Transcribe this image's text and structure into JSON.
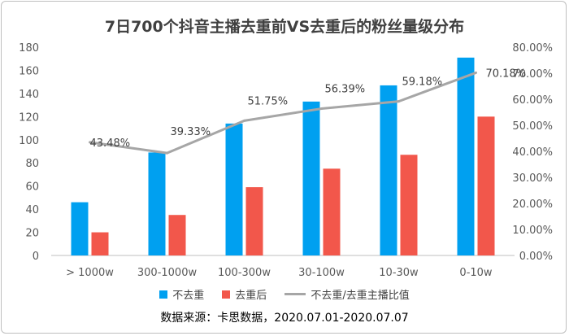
{
  "chart_data": {
    "type": "bar",
    "title": "7日700个抖音主播去重前VS去重后的粉丝量级分布",
    "categories": [
      "> 1000w",
      "300-1000w",
      "100-300w",
      "30-100w",
      "10-30w",
      "0-10w"
    ],
    "series": [
      {
        "name": "不去重",
        "type": "bar",
        "axis": "left",
        "color": "#00a0f0",
        "values": [
          46,
          89,
          114,
          133,
          147,
          171
        ]
      },
      {
        "name": "去重后",
        "type": "bar",
        "axis": "left",
        "color": "#f2574b",
        "values": [
          20,
          35,
          59,
          75,
          87,
          120
        ]
      },
      {
        "name": "不去重/去重主播比值",
        "type": "line",
        "axis": "right",
        "color": "#a6a6a6",
        "values": [
          43.48,
          39.33,
          51.75,
          56.39,
          59.18,
          70.18
        ],
        "labels": [
          "43.48%",
          "39.33%",
          "51.75%",
          "56.39%",
          "59.18%",
          "70.18%"
        ]
      }
    ],
    "y_left": {
      "range": [
        0,
        180
      ],
      "ticks": [
        "0",
        "20",
        "40",
        "60",
        "80",
        "100",
        "120",
        "140",
        "160",
        "180"
      ]
    },
    "y_right": {
      "range": [
        0,
        80
      ],
      "ticks": [
        "0.00%",
        "10.00%",
        "20.00%",
        "30.00%",
        "40.00%",
        "50.00%",
        "60.00%",
        "70.00%",
        "80.00%"
      ]
    },
    "grid": false,
    "legend_position": "bottom"
  },
  "source_note": "数据来源：卡思数据，2020.07.01-2020.07.07"
}
